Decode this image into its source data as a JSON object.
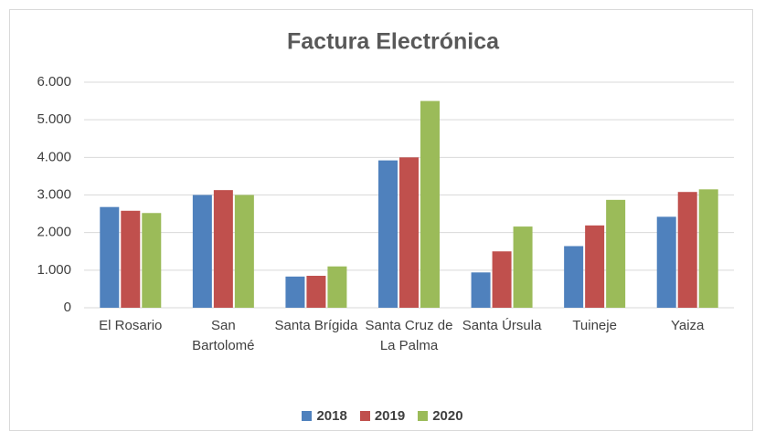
{
  "chart_data": {
    "type": "bar",
    "title": "Factura Electrónica",
    "categories": [
      "El Rosario",
      "San Bartolomé",
      "Santa Brígida",
      "Santa Cruz de La Palma",
      "Santa Úrsula",
      "Tuineje",
      "Yaiza"
    ],
    "series": [
      {
        "name": "2018",
        "color": "#4f81bd",
        "values": [
          2680,
          3000,
          830,
          3920,
          940,
          1640,
          2420
        ]
      },
      {
        "name": "2019",
        "color": "#c0504d",
        "values": [
          2580,
          3130,
          850,
          4000,
          1500,
          2190,
          3080
        ]
      },
      {
        "name": "2020",
        "color": "#9bbb59",
        "values": [
          2520,
          3000,
          1100,
          5500,
          2160,
          2870,
          3150
        ]
      }
    ],
    "ylim": [
      0,
      6000
    ],
    "yticks": [
      0,
      {
        "value": 1000,
        "label": "1.000"
      },
      {
        "value": 2000,
        "label": "2.000"
      },
      {
        "value": 3000,
        "label": "3.000"
      },
      {
        "value": 4000,
        "label": "4.000"
      },
      {
        "value": 5000,
        "label": "5.000"
      },
      {
        "value": 6000,
        "label": "6.000"
      }
    ],
    "grid": true,
    "legend": "bottom"
  }
}
